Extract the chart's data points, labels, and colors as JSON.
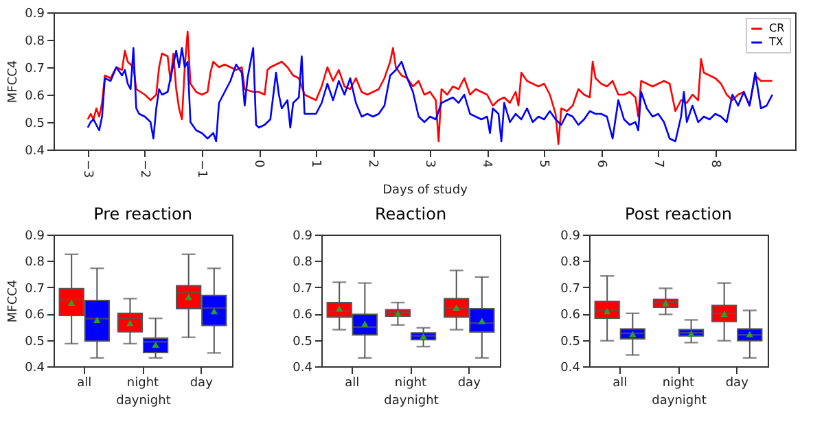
{
  "chart_data": [
    {
      "type": "line",
      "xlabel": "Days of study",
      "ylabel": "MFCC4",
      "xlim": [
        -3.6,
        9.4
      ],
      "ylim": [
        0.4,
        0.9
      ],
      "xticks": [
        -3,
        -2,
        -1,
        0,
        1,
        2,
        3,
        4,
        5,
        6,
        7,
        8
      ],
      "yticks": [
        0.4,
        0.5,
        0.6,
        0.7,
        0.8,
        0.9
      ],
      "legend": "top right",
      "series": [
        {
          "name": "CR",
          "color": "#ff0000",
          "x": [
            -3.0,
            -2.95,
            -2.9,
            -2.85,
            -2.8,
            -2.75,
            -2.7,
            -2.6,
            -2.5,
            -2.4,
            -2.35,
            -2.3,
            -2.2,
            -2.15,
            -2.0,
            -1.9,
            -1.8,
            -1.75,
            -1.7,
            -1.6,
            -1.55,
            -1.5,
            -1.45,
            -1.4,
            -1.35,
            -1.3,
            -1.25,
            -1.2,
            -1.1,
            -1.0,
            -0.9,
            -0.85,
            -0.8,
            -0.7,
            -0.6,
            -0.5,
            -0.4,
            -0.3,
            -0.25,
            -0.1,
            0.0,
            0.1,
            0.15,
            0.2,
            0.3,
            0.4,
            0.5,
            0.6,
            0.7,
            0.8,
            0.9,
            1.0,
            1.1,
            1.2,
            1.3,
            1.4,
            1.5,
            1.6,
            1.7,
            1.8,
            1.9,
            2.0,
            2.1,
            2.2,
            2.3,
            2.35,
            2.4,
            2.5,
            2.6,
            2.7,
            2.8,
            2.9,
            3.0,
            3.1,
            3.15,
            3.2,
            3.3,
            3.4,
            3.5,
            3.6,
            3.7,
            3.8,
            3.9,
            4.0,
            4.1,
            4.2,
            4.3,
            4.4,
            4.5,
            4.55,
            4.6,
            4.7,
            4.8,
            4.9,
            5.0,
            5.1,
            5.2,
            5.25,
            5.3,
            5.4,
            5.5,
            5.6,
            5.7,
            5.8,
            5.85,
            5.9,
            6.0,
            6.1,
            6.2,
            6.3,
            6.4,
            6.5,
            6.6,
            6.65,
            6.7,
            6.8,
            6.9,
            7.0,
            7.1,
            7.2,
            7.3,
            7.4,
            7.5,
            7.6,
            7.7,
            7.75,
            7.8,
            7.9,
            8.0,
            8.1,
            8.2,
            8.3,
            8.4,
            8.5,
            8.6,
            8.7,
            8.8,
            8.9,
            9.0
          ],
          "values": [
            0.51,
            0.53,
            0.51,
            0.55,
            0.52,
            0.57,
            0.67,
            0.66,
            0.7,
            0.69,
            0.76,
            0.72,
            0.7,
            0.62,
            0.6,
            0.58,
            0.6,
            0.7,
            0.75,
            0.74,
            0.65,
            0.75,
            0.62,
            0.55,
            0.51,
            0.7,
            0.83,
            0.64,
            0.61,
            0.6,
            0.61,
            0.68,
            0.72,
            0.7,
            0.71,
            0.7,
            0.69,
            0.7,
            0.62,
            0.61,
            0.61,
            0.6,
            0.69,
            0.7,
            0.71,
            0.72,
            0.7,
            0.67,
            0.66,
            0.6,
            0.59,
            0.58,
            0.63,
            0.7,
            0.65,
            0.69,
            0.63,
            0.62,
            0.66,
            0.61,
            0.6,
            0.61,
            0.62,
            0.66,
            0.72,
            0.77,
            0.7,
            0.67,
            0.66,
            0.63,
            0.65,
            0.6,
            0.61,
            0.58,
            0.43,
            0.62,
            0.6,
            0.63,
            0.62,
            0.66,
            0.6,
            0.62,
            0.61,
            0.6,
            0.56,
            0.58,
            0.59,
            0.57,
            0.61,
            0.56,
            0.68,
            0.65,
            0.64,
            0.63,
            0.64,
            0.6,
            0.53,
            0.42,
            0.55,
            0.54,
            0.56,
            0.62,
            0.6,
            0.59,
            0.72,
            0.66,
            0.64,
            0.63,
            0.65,
            0.6,
            0.6,
            0.61,
            0.59,
            0.52,
            0.65,
            0.64,
            0.63,
            0.64,
            0.65,
            0.64,
            0.54,
            0.58,
            0.57,
            0.6,
            0.58,
            0.73,
            0.68,
            0.67,
            0.66,
            0.64,
            0.6,
            0.58,
            0.6,
            0.61,
            0.56,
            0.67,
            0.65,
            0.65,
            0.65
          ]
        },
        {
          "name": "TX",
          "color": "#0000ff",
          "x": [
            -3.0,
            -2.95,
            -2.9,
            -2.85,
            -2.8,
            -2.75,
            -2.7,
            -2.6,
            -2.5,
            -2.4,
            -2.35,
            -2.3,
            -2.25,
            -2.2,
            -2.15,
            -2.1,
            -2.0,
            -1.9,
            -1.85,
            -1.8,
            -1.75,
            -1.7,
            -1.6,
            -1.5,
            -1.45,
            -1.4,
            -1.35,
            -1.3,
            -1.25,
            -1.2,
            -1.1,
            -1.0,
            -0.9,
            -0.8,
            -0.75,
            -0.7,
            -0.6,
            -0.5,
            -0.4,
            -0.3,
            -0.25,
            -0.2,
            -0.1,
            -0.05,
            0.0,
            0.1,
            0.2,
            0.3,
            0.35,
            0.4,
            0.5,
            0.55,
            0.6,
            0.7,
            0.75,
            0.8,
            0.9,
            1.0,
            1.1,
            1.2,
            1.3,
            1.4,
            1.5,
            1.6,
            1.7,
            1.8,
            1.9,
            2.0,
            2.1,
            2.2,
            2.3,
            2.4,
            2.5,
            2.6,
            2.7,
            2.8,
            2.9,
            3.0,
            3.1,
            3.2,
            3.3,
            3.4,
            3.5,
            3.6,
            3.7,
            3.8,
            3.9,
            4.0,
            4.05,
            4.1,
            4.2,
            4.25,
            4.3,
            4.4,
            4.5,
            4.6,
            4.7,
            4.8,
            4.9,
            5.0,
            5.1,
            5.2,
            5.3,
            5.4,
            5.5,
            5.6,
            5.7,
            5.8,
            5.9,
            6.0,
            6.1,
            6.2,
            6.3,
            6.4,
            6.5,
            6.6,
            6.65,
            6.7,
            6.8,
            6.9,
            7.0,
            7.1,
            7.2,
            7.3,
            7.4,
            7.45,
            7.5,
            7.6,
            7.7,
            7.8,
            7.9,
            8.0,
            8.1,
            8.2,
            8.3,
            8.4,
            8.5,
            8.6,
            8.7,
            8.8,
            8.9,
            9.0
          ],
          "values": [
            0.48,
            0.5,
            0.51,
            0.49,
            0.47,
            0.52,
            0.66,
            0.65,
            0.7,
            0.67,
            0.69,
            0.64,
            0.62,
            0.77,
            0.55,
            0.53,
            0.52,
            0.5,
            0.44,
            0.55,
            0.62,
            0.6,
            0.61,
            0.71,
            0.76,
            0.7,
            0.77,
            0.7,
            0.72,
            0.5,
            0.47,
            0.46,
            0.44,
            0.46,
            0.43,
            0.57,
            0.61,
            0.65,
            0.71,
            0.68,
            0.56,
            0.66,
            0.77,
            0.49,
            0.48,
            0.49,
            0.51,
            0.68,
            0.6,
            0.55,
            0.58,
            0.48,
            0.57,
            0.59,
            0.74,
            0.53,
            0.53,
            0.53,
            0.57,
            0.64,
            0.58,
            0.65,
            0.6,
            0.66,
            0.57,
            0.52,
            0.53,
            0.52,
            0.53,
            0.56,
            0.67,
            0.69,
            0.72,
            0.66,
            0.61,
            0.52,
            0.5,
            0.52,
            0.51,
            0.57,
            0.58,
            0.59,
            0.57,
            0.6,
            0.53,
            0.52,
            0.51,
            0.52,
            0.46,
            0.55,
            0.53,
            0.43,
            0.57,
            0.5,
            0.53,
            0.51,
            0.55,
            0.5,
            0.52,
            0.51,
            0.54,
            0.51,
            0.49,
            0.53,
            0.52,
            0.49,
            0.51,
            0.54,
            0.53,
            0.53,
            0.52,
            0.44,
            0.58,
            0.51,
            0.49,
            0.5,
            0.47,
            0.61,
            0.55,
            0.52,
            0.53,
            0.5,
            0.44,
            0.43,
            0.52,
            0.61,
            0.5,
            0.56,
            0.5,
            0.52,
            0.51,
            0.53,
            0.52,
            0.5,
            0.6,
            0.56,
            0.61,
            0.56,
            0.68,
            0.55,
            0.56,
            0.6
          ]
        }
      ]
    },
    {
      "type": "box",
      "title": "Pre reaction",
      "xlabel": "daynight",
      "ylabel": "MFCC4",
      "categories": [
        "all",
        "night",
        "day"
      ],
      "ylim": [
        0.4,
        0.9
      ],
      "yticks": [
        0.4,
        0.5,
        0.6,
        0.7,
        0.8,
        0.9
      ],
      "series": [
        {
          "color": "#ff0000",
          "boxes": [
            {
              "low": 0.486,
              "q1": 0.593,
              "median": 0.653,
              "q3": 0.695,
              "high": 0.825,
              "mean": 0.641
            },
            {
              "low": 0.486,
              "q1": 0.531,
              "median": 0.582,
              "q3": 0.601,
              "high": 0.657,
              "mean": 0.564
            },
            {
              "low": 0.51,
              "q1": 0.619,
              "median": 0.681,
              "q3": 0.706,
              "high": 0.825,
              "mean": 0.663
            }
          ]
        },
        {
          "color": "#0000ff",
          "boxes": [
            {
              "low": 0.432,
              "q1": 0.496,
              "median": 0.581,
              "q3": 0.65,
              "high": 0.772,
              "mean": 0.576
            },
            {
              "low": 0.432,
              "q1": 0.452,
              "median": 0.493,
              "q3": 0.507,
              "high": 0.582,
              "mean": 0.482
            },
            {
              "low": 0.451,
              "q1": 0.555,
              "median": 0.621,
              "q3": 0.669,
              "high": 0.772,
              "mean": 0.609
            }
          ]
        }
      ]
    },
    {
      "type": "box",
      "title": "Reaction",
      "xlabel": "daynight",
      "categories": [
        "all",
        "night",
        "day"
      ],
      "ylim": [
        0.4,
        0.9
      ],
      "yticks": [
        0.4,
        0.5,
        0.6,
        0.7,
        0.8,
        0.9
      ],
      "series": [
        {
          "color": "#ff0000",
          "boxes": [
            {
              "low": 0.539,
              "q1": 0.587,
              "median": 0.609,
              "q3": 0.642,
              "high": 0.719,
              "mean": 0.619
            },
            {
              "low": 0.557,
              "q1": 0.59,
              "median": 0.604,
              "q3": 0.615,
              "high": 0.642,
              "mean": 0.601
            },
            {
              "low": 0.539,
              "q1": 0.587,
              "median": 0.621,
              "q3": 0.657,
              "high": 0.764,
              "mean": 0.623
            }
          ]
        },
        {
          "color": "#0000ff",
          "boxes": [
            {
              "low": 0.432,
              "q1": 0.519,
              "median": 0.549,
              "q3": 0.597,
              "high": 0.716,
              "mean": 0.561
            },
            {
              "low": 0.475,
              "q1": 0.501,
              "median": 0.516,
              "q3": 0.527,
              "high": 0.546,
              "mean": 0.514
            },
            {
              "low": 0.432,
              "q1": 0.53,
              "median": 0.564,
              "q3": 0.619,
              "high": 0.739,
              "mean": 0.572
            }
          ]
        }
      ]
    },
    {
      "type": "box",
      "title": "Post reaction",
      "xlabel": "daynight",
      "categories": [
        "all",
        "night",
        "day"
      ],
      "ylim": [
        0.4,
        0.9
      ],
      "yticks": [
        0.4,
        0.5,
        0.6,
        0.7,
        0.8,
        0.9
      ],
      "series": [
        {
          "color": "#ff0000",
          "boxes": [
            {
              "low": 0.497,
              "q1": 0.582,
              "median": 0.612,
              "q3": 0.646,
              "high": 0.743,
              "mean": 0.609
            },
            {
              "low": 0.597,
              "q1": 0.624,
              "median": 0.642,
              "q3": 0.654,
              "high": 0.696,
              "mean": 0.64
            },
            {
              "low": 0.497,
              "q1": 0.57,
              "median": 0.601,
              "q3": 0.631,
              "high": 0.716,
              "mean": 0.599
            }
          ]
        },
        {
          "color": "#0000ff",
          "boxes": [
            {
              "low": 0.443,
              "q1": 0.504,
              "median": 0.525,
              "q3": 0.542,
              "high": 0.601,
              "mean": 0.522
            },
            {
              "low": 0.49,
              "q1": 0.515,
              "median": 0.527,
              "q3": 0.539,
              "high": 0.576,
              "mean": 0.524
            },
            {
              "low": 0.432,
              "q1": 0.497,
              "median": 0.519,
              "q3": 0.542,
              "high": 0.612,
              "mean": 0.522
            }
          ]
        }
      ]
    }
  ]
}
